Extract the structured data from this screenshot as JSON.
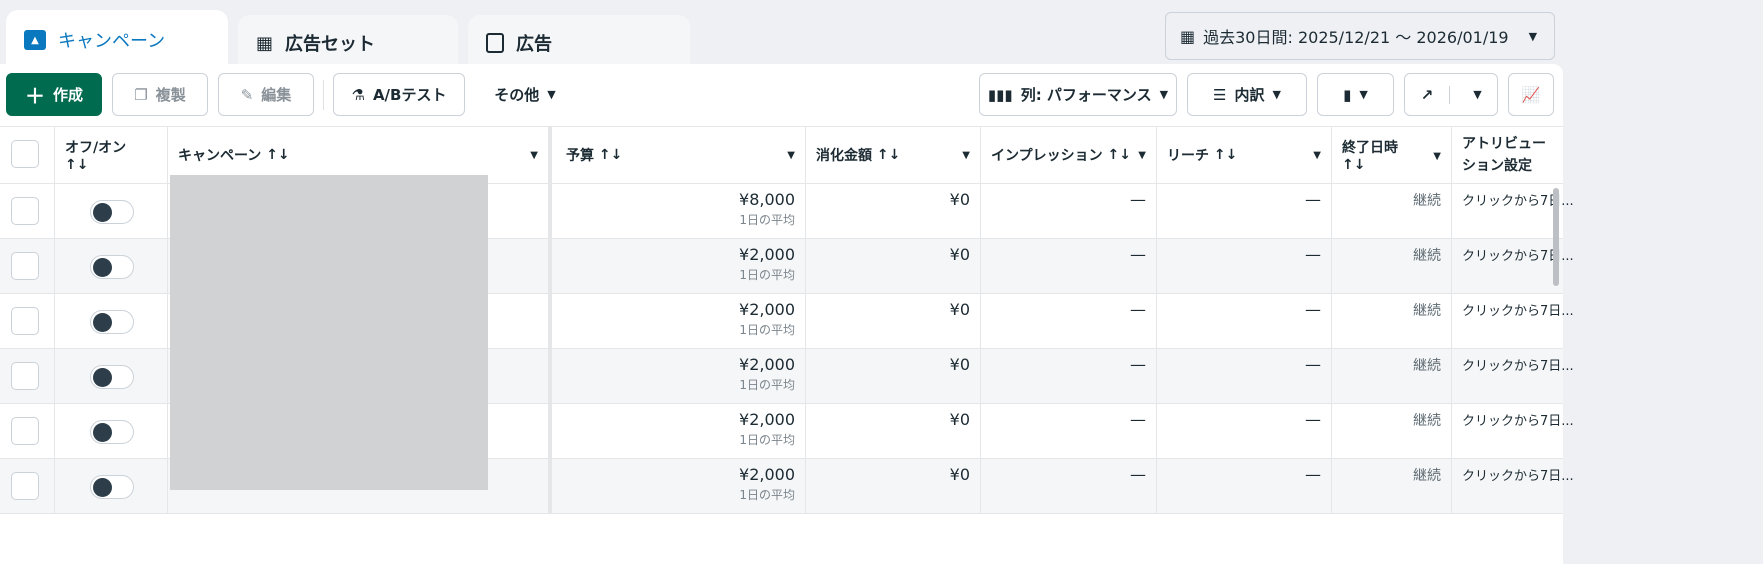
{
  "tabs": [
    {
      "label": "キャンペーン",
      "icon": "campaign-folder-icon",
      "active": true
    },
    {
      "label": "広告セット",
      "icon": "ad-set-grid-icon"
    },
    {
      "label": "広告",
      "icon": "ad-window-icon"
    }
  ],
  "date_range": {
    "label": "過去30日間: 2025/12/21 ～ 2026/01/19"
  },
  "toolbar": {
    "create": "作成",
    "duplicate": "複製",
    "edit": "編集",
    "ab_test": "A/Bテスト",
    "more": "その他",
    "columns": "列: パフォーマンス",
    "breakdown": "内訳"
  },
  "colors": {
    "accent": "#0a78be",
    "create_button": "#006b4f"
  },
  "headers": {
    "toggle": "オフ/オン",
    "campaign": "キャンペーン",
    "budget": "予算",
    "spend": "消化金額",
    "impressions": "インプレッション",
    "reach": "リーチ",
    "end": "終了日時",
    "attribution": "アトリビューション設定",
    "sort": "↑↓"
  },
  "rows": [
    {
      "budget": "¥8,000",
      "budget_sub": "1日の平均",
      "spend": "¥0",
      "impressions": "—",
      "reach": "—",
      "end": "継続",
      "attribution": "クリックから7日..."
    },
    {
      "budget": "¥2,000",
      "budget_sub": "1日の平均",
      "spend": "¥0",
      "impressions": "—",
      "reach": "—",
      "end": "継続",
      "attribution": "クリックから7日..."
    },
    {
      "budget": "¥2,000",
      "budget_sub": "1日の平均",
      "spend": "¥0",
      "impressions": "—",
      "reach": "—",
      "end": "継続",
      "attribution": "クリックから7日..."
    },
    {
      "budget": "¥2,000",
      "budget_sub": "1日の平均",
      "spend": "¥0",
      "impressions": "—",
      "reach": "—",
      "end": "継続",
      "attribution": "クリックから7日..."
    },
    {
      "budget": "¥2,000",
      "budget_sub": "1日の平均",
      "spend": "¥0",
      "impressions": "—",
      "reach": "—",
      "end": "継続",
      "attribution": "クリックから7日..."
    },
    {
      "budget": "¥2,000",
      "budget_sub": "1日の平均",
      "spend": "¥0",
      "impressions": "—",
      "reach": "—",
      "end": "継続",
      "attribution": "クリックから7日..."
    }
  ]
}
